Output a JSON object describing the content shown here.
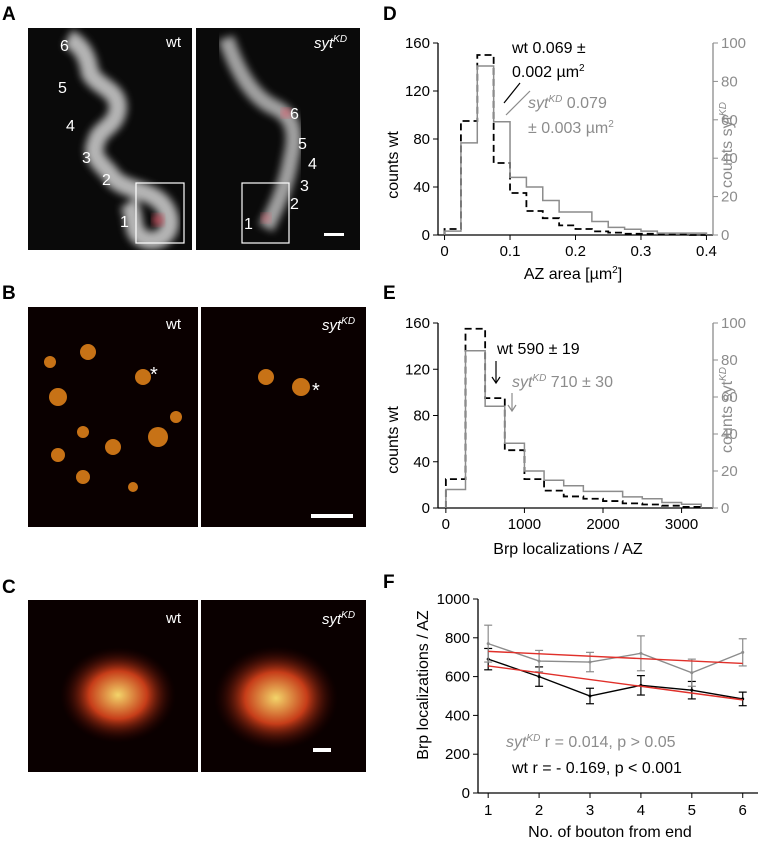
{
  "panels": {
    "A": {
      "letter": "A",
      "wt_label": "wt",
      "kd_label": "syt",
      "kd_sup": "KD",
      "wt_boutons": [
        "6",
        "5",
        "4",
        "3",
        "2",
        "1"
      ],
      "kd_boutons": [
        "6",
        "5",
        "4",
        "3",
        "2",
        "1"
      ]
    },
    "B": {
      "letter": "B",
      "wt_label": "wt",
      "kd_label": "syt",
      "kd_sup": "KD",
      "asterisk": "*"
    },
    "C": {
      "letter": "C",
      "wt_label": "wt",
      "kd_label": "syt",
      "kd_sup": "KD"
    },
    "D": {
      "letter": "D",
      "ylabel_left": "counts wt",
      "ylabel_right": "counts syt",
      "ylabel_right_sup": "KD",
      "xlabel": "AZ area  [µm",
      "xlabel_sup": "2",
      "xlabel_end": "]",
      "left_ticks": [
        "0",
        "40",
        "80",
        "120",
        "160"
      ],
      "right_ticks": [
        "0",
        "20",
        "40",
        "60",
        "80",
        "100"
      ],
      "x_ticks": [
        "0",
        "0.1",
        "0.2",
        "0.3",
        "0.4"
      ],
      "ann_wt_1": "wt 0.069 ±",
      "ann_wt_2": "0.002 µm",
      "ann_wt_sup": "2",
      "ann_kd_1a": "syt",
      "ann_kd_1sup": "KD",
      "ann_kd_1b": " 0.079",
      "ann_kd_2": "± 0.003 µm",
      "ann_kd_sup": "2"
    },
    "E": {
      "letter": "E",
      "ylabel_left": "counts wt",
      "ylabel_right": "counts syt",
      "ylabel_right_sup": "KD",
      "xlabel": "Brp localizations / AZ",
      "left_ticks": [
        "0",
        "40",
        "80",
        "120",
        "160"
      ],
      "right_ticks": [
        "0",
        "20",
        "40",
        "60",
        "80",
        "100"
      ],
      "x_ticks": [
        "0",
        "1000",
        "2000",
        "3000"
      ],
      "ann_wt": "wt 590 ± 19",
      "ann_kd_a": "syt",
      "ann_kd_sup": "KD",
      "ann_kd_b": " 710 ± 30"
    },
    "F": {
      "letter": "F",
      "ylabel": "Brp localizations / AZ",
      "xlabel": "No. of bouton from end",
      "y_ticks": [
        "0",
        "200",
        "400",
        "600",
        "800",
        "1000"
      ],
      "x_ticks": [
        "1",
        "2",
        "3",
        "4",
        "5",
        "6"
      ],
      "ann_kd_a": "syt",
      "ann_kd_sup": "KD",
      "ann_kd_b": " r =  0.014, p > 0.05",
      "ann_wt": "wt    r =  - 0.169, p < 0.001"
    }
  },
  "colors": {
    "wt": "#000000",
    "kd": "#8c8c8c",
    "fit": "#e0302a"
  },
  "chart_data": [
    {
      "type": "histogram",
      "panel": "D",
      "xlabel": "AZ area [µm2]",
      "ylabel": "counts wt",
      "ylabel_right": "counts sytKD",
      "xlim": [
        -0.01,
        0.41
      ],
      "ylim": [
        0,
        160
      ],
      "ylim_right": [
        0,
        100
      ],
      "bin_edges": [
        0.0,
        0.025,
        0.05,
        0.075,
        0.1,
        0.125,
        0.15,
        0.175,
        0.2,
        0.225,
        0.25,
        0.275,
        0.3,
        0.325,
        0.35,
        0.375,
        0.4
      ],
      "series": [
        {
          "name": "wt",
          "axis": "left",
          "values": [
            5,
            95,
            150,
            60,
            35,
            20,
            14,
            8,
            5,
            3,
            2,
            1,
            1,
            1,
            1,
            0
          ]
        },
        {
          "name": "sytKD",
          "axis": "right",
          "values": [
            2,
            48,
            88,
            59,
            30,
            25,
            18,
            12,
            12,
            7,
            4,
            3,
            2,
            1,
            1,
            1
          ]
        }
      ]
    },
    {
      "type": "histogram",
      "panel": "E",
      "xlabel": "Brp localizations / AZ",
      "ylabel": "counts wt",
      "ylabel_right": "counts sytKD",
      "xlim": [
        -100,
        3400
      ],
      "ylim": [
        0,
        160
      ],
      "ylim_right": [
        0,
        100
      ],
      "bin_edges": [
        0,
        250,
        500,
        750,
        1000,
        1250,
        1500,
        1750,
        2000,
        2250,
        2500,
        2750,
        3000,
        3250
      ],
      "series": [
        {
          "name": "wt",
          "axis": "left",
          "values": [
            25,
            155,
            95,
            50,
            25,
            15,
            10,
            8,
            6,
            4,
            3,
            2,
            1
          ]
        },
        {
          "name": "sytKD",
          "axis": "right",
          "values": [
            10,
            85,
            55,
            35,
            20,
            15,
            12,
            9,
            9,
            6,
            5,
            3,
            2
          ]
        }
      ]
    },
    {
      "type": "line",
      "panel": "F",
      "xlabel": "No. of bouton from end",
      "ylabel": "Brp localizations / AZ",
      "xlim": [
        0.8,
        6.3
      ],
      "ylim": [
        0,
        1000
      ],
      "x": [
        1,
        2,
        3,
        4,
        5,
        6
      ],
      "series": [
        {
          "name": "wt",
          "values": [
            690,
            600,
            500,
            555,
            530,
            485
          ],
          "errors": [
            55,
            50,
            40,
            50,
            45,
            35
          ]
        },
        {
          "name": "sytKD",
          "values": [
            770,
            680,
            675,
            720,
            620,
            725
          ],
          "errors": [
            95,
            55,
            50,
            90,
            70,
            70
          ]
        }
      ],
      "fits": [
        {
          "name": "wt fit",
          "x": [
            1,
            6
          ],
          "y": [
            655,
            480
          ]
        },
        {
          "name": "sytKD fit",
          "x": [
            1,
            6
          ],
          "y": [
            730,
            668
          ]
        }
      ]
    }
  ]
}
